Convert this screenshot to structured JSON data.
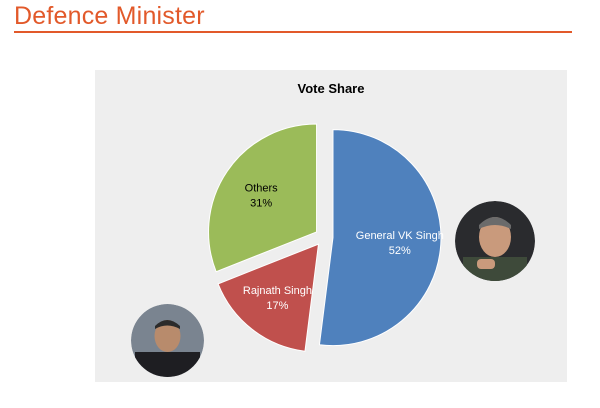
{
  "page": {
    "heading": "Defence Minister"
  },
  "chart_data": {
    "type": "pie",
    "title": "Vote Share",
    "slices": [
      {
        "name": "General VK Singh",
        "value": 52,
        "label": "52%",
        "color": "#4f81bd",
        "exploded": true
      },
      {
        "name": "Rajnath Singh",
        "value": 17,
        "label": "17%",
        "color": "#c0504d",
        "exploded": true
      },
      {
        "name": "Others",
        "value": 31,
        "label": "31%",
        "color": "#9bbb59",
        "exploded": true
      }
    ],
    "start_angle_deg": 0,
    "direction": "clockwise",
    "data_labels": "inside",
    "legend": "none",
    "background": "#eeeeee"
  },
  "portraits": [
    {
      "name": "general-vk-singh-photo",
      "icon": "portrait-icon"
    },
    {
      "name": "rajnath-singh-photo",
      "icon": "portrait-icon"
    }
  ]
}
